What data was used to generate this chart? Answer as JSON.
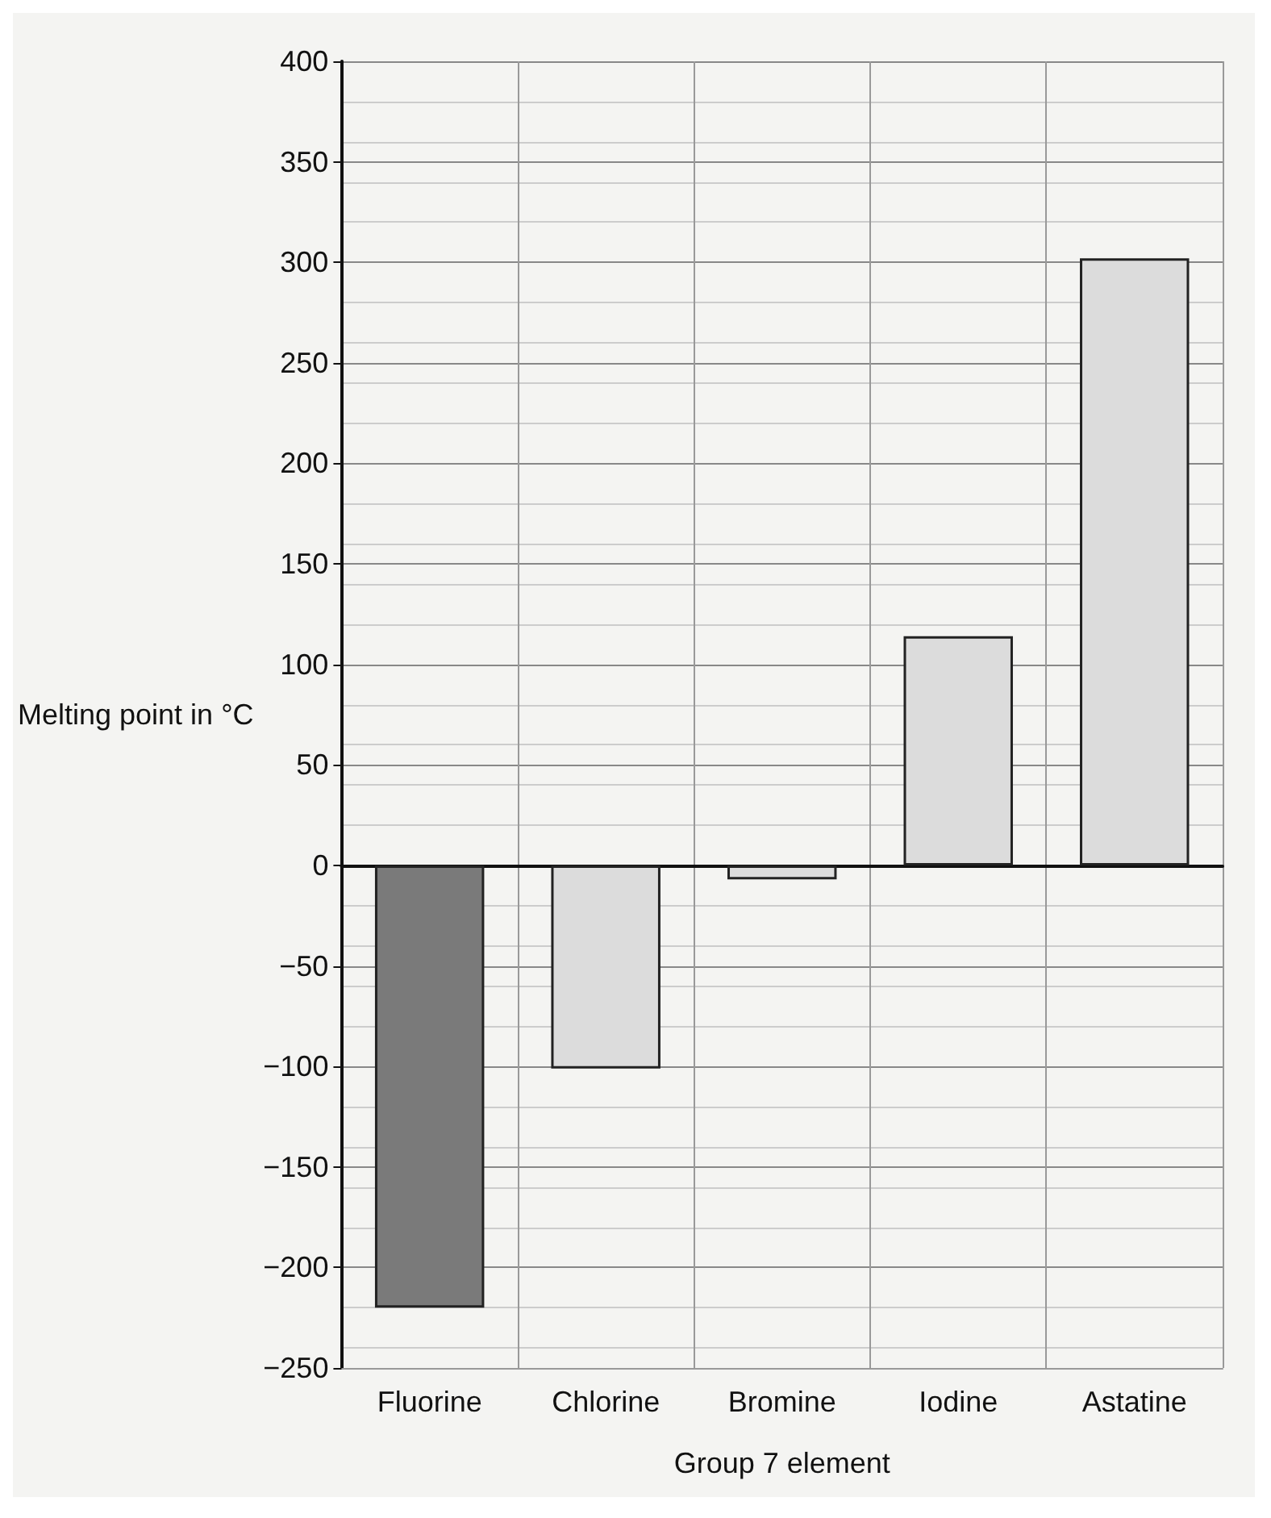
{
  "chart_data": {
    "type": "bar",
    "xlabel": "Group 7 element",
    "ylabel": "Melting point in °C",
    "categories": [
      "Fluorine",
      "Chlorine",
      "Bromine",
      "Iodine",
      "Astatine"
    ],
    "values": [
      -220,
      -101,
      -7,
      114,
      302
    ],
    "colors": [
      "#7a7a7a",
      "#dcdcdc",
      "#dcdcdc",
      "#dcdcdc",
      "#dcdcdc"
    ],
    "ylim": [
      -250,
      400
    ],
    "yticks": [
      -250,
      -200,
      -150,
      -100,
      -50,
      0,
      50,
      100,
      150,
      200,
      250,
      300,
      350,
      400
    ],
    "grid": true
  }
}
